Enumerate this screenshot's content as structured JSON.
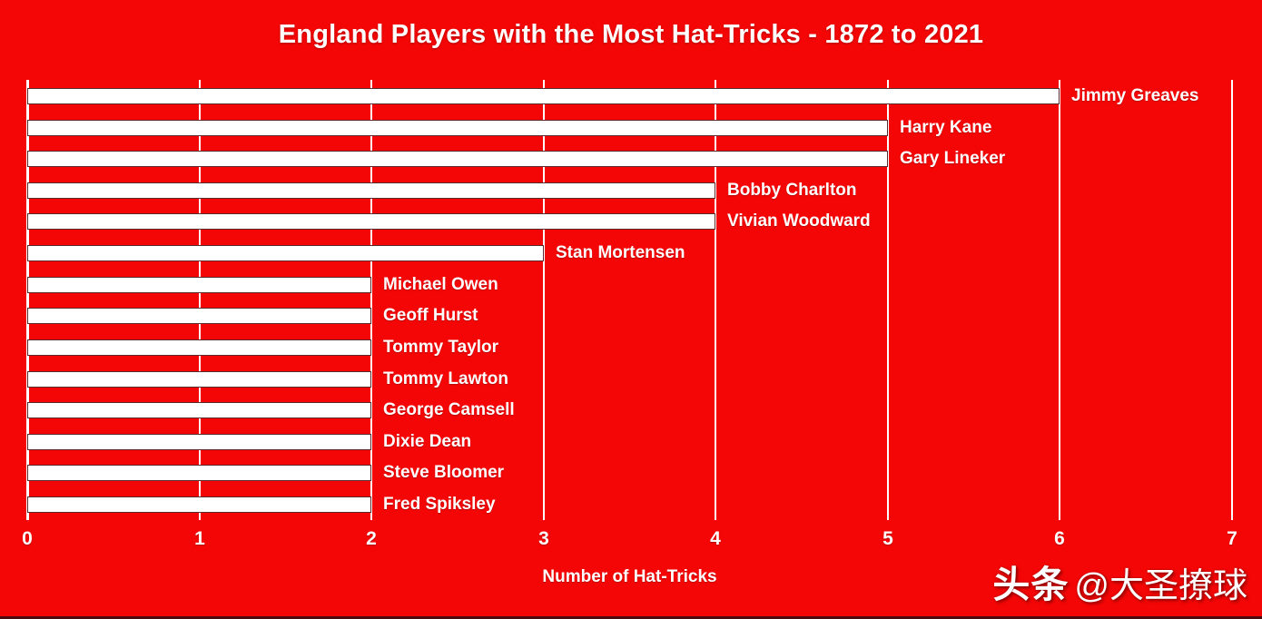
{
  "title": "England Players with the Most Hat-Tricks - 1872 to 2021",
  "chart_data": {
    "type": "bar",
    "orientation": "horizontal",
    "title": "England Players with the Most Hat-Tricks - 1872 to 2021",
    "xlabel": "Number of Hat-Tricks",
    "xlim": [
      0,
      7
    ],
    "x_ticks": [
      "0",
      "1",
      "2",
      "3",
      "4",
      "5",
      "6",
      "7"
    ],
    "grid": true,
    "legend": false,
    "categories": [
      "Jimmy Greaves",
      "Harry Kane",
      "Gary Lineker",
      "Bobby Charlton",
      "Vivian Woodward",
      "Stan Mortensen",
      "Michael Owen",
      "Geoff Hurst",
      "Tommy Taylor",
      "Tommy Lawton",
      "George Camsell",
      "Dixie Dean",
      "Steve Bloomer",
      "Fred Spiksley"
    ],
    "values": [
      6,
      5,
      5,
      4,
      4,
      3,
      2,
      2,
      2,
      2,
      2,
      2,
      2,
      2
    ]
  },
  "colors": {
    "background": "#F40606",
    "bar_fill": "#FFFFFF",
    "bar_border": "#3E0404",
    "gridline": "#FFFFFF",
    "text": "#FFFFFF"
  },
  "watermark": {
    "brand": "头条",
    "handle": "@大圣撩球"
  }
}
